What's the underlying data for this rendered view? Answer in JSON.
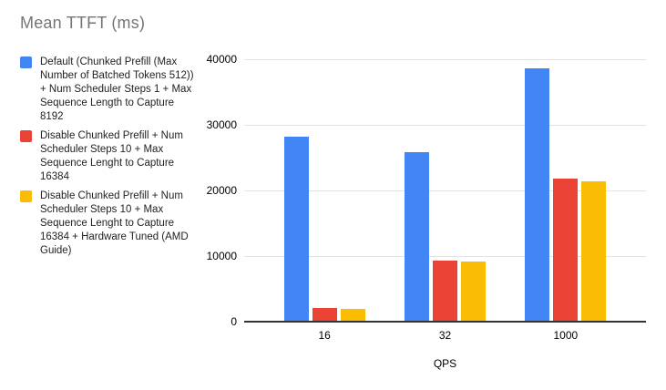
{
  "title": "Mean TTFT (ms)",
  "chart_data": {
    "type": "bar",
    "title": "Mean TTFT (ms)",
    "xlabel": "QPS",
    "ylabel": "",
    "categories": [
      "16",
      "32",
      "1000"
    ],
    "series": [
      {
        "name": "Default (Chunked Prefill (Max Number of Batched Tokens 512)) + Num Scheduler Steps 1 + Max Sequence Length to Capture 8192",
        "color": "#4285F4",
        "values": [
          28400,
          26000,
          38800
        ]
      },
      {
        "name": "Disable Chunked Prefill + Num Scheduler Steps 10 + Max Sequence Lenght to Capture 16384",
        "color": "#EA4335",
        "values": [
          2200,
          9400,
          21900
        ]
      },
      {
        "name": "Disable Chunked Prefill + Num Scheduler Steps 10 + Max Sequence Lenght to Capture 16384 + Hardware Tuned (AMD Guide)",
        "color": "#FBBC04",
        "values": [
          2100,
          9300,
          21500
        ]
      }
    ],
    "ylim": [
      0,
      40000
    ],
    "yticks": [
      0,
      10000,
      20000,
      30000,
      40000
    ],
    "grid": true,
    "legend_position": "left"
  }
}
